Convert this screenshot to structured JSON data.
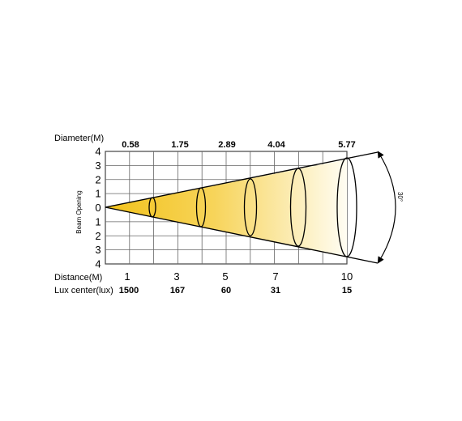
{
  "diagram": {
    "diameter_label": "Diameter(M)",
    "diameters": [
      "0.58",
      "1.75",
      "2.89",
      "4.04",
      "5.77"
    ],
    "y_axis_label": "Beam Opening",
    "y_ticks": [
      "4",
      "3",
      "2",
      "1",
      "0",
      "1",
      "2",
      "3",
      "4"
    ],
    "distance_label": "Distance(M)",
    "distances": [
      "1",
      "3",
      "5",
      "7",
      "10"
    ],
    "lux_label": "Lux center(lux)",
    "lux_values": [
      "1500",
      "167",
      "60",
      "31",
      "15"
    ],
    "beam_angle": "30°",
    "colors": {
      "beam_near": "#f2c21b",
      "beam_far": "#fffdf2",
      "grid": "#555555"
    }
  }
}
